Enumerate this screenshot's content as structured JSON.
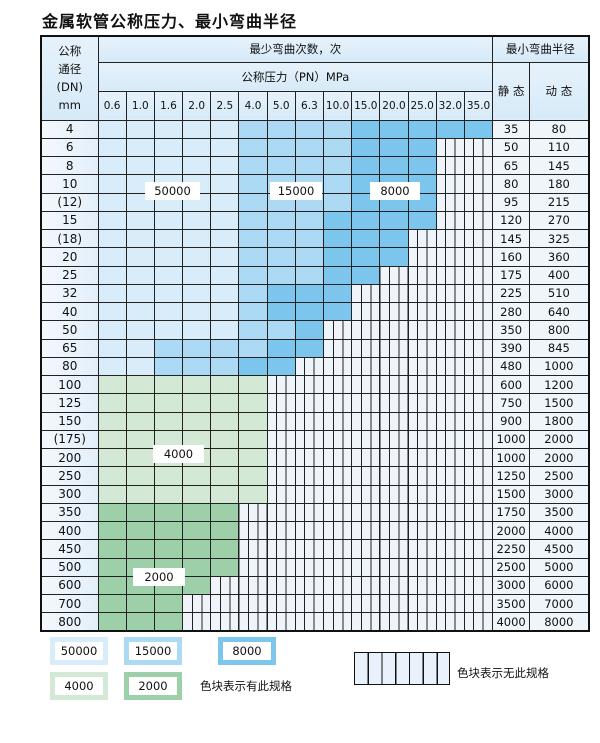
{
  "title": "金属软管公称压力、最小弯曲半径",
  "header": {
    "dn_label": [
      "公称",
      "通径",
      "(DN)",
      "mm"
    ],
    "cycles_label": "最少弯曲次数，次",
    "pressure_label": "公称压力（PN）MPa",
    "radius_label": "最小弯曲半径",
    "static_label": "静 态",
    "dynamic_label": "动 态",
    "pressures": [
      "0.6",
      "1.0",
      "1.6",
      "2.0",
      "2.5",
      "4.0",
      "5.0",
      "6.3",
      "10.0",
      "15.0",
      "20.0",
      "25.0",
      "32.0",
      "35.0"
    ]
  },
  "fill_legend": {
    "L": "50000",
    "M": "15000",
    "D": "8000",
    "G": "4000",
    "H": "2000",
    "E": "none"
  },
  "colors": {
    "L": "#d9ecf9",
    "M": "#acd9f3",
    "D": "#7cc6ee",
    "G": "#d3e8d5",
    "H": "#9dd0a9"
  },
  "rows": [
    {
      "dn": "4",
      "cells": "LLLLLMMMMDDDDD",
      "static": "35",
      "dynamic": "80"
    },
    {
      "dn": "6",
      "cells": "LLLLLMMMMDDDEE",
      "static": "50",
      "dynamic": "110"
    },
    {
      "dn": "8",
      "cells": "LLLLLMMMMDDDEE",
      "static": "65",
      "dynamic": "145"
    },
    {
      "dn": "10",
      "cells": "LLLLLMMMMDDDEE",
      "static": "80",
      "dynamic": "180"
    },
    {
      "dn": "(12)",
      "cells": "LLLLLMMMMDDDEE",
      "static": "95",
      "dynamic": "215"
    },
    {
      "dn": "15",
      "cells": "LLLLLMMMDDDDEE",
      "static": "120",
      "dynamic": "270"
    },
    {
      "dn": "(18)",
      "cells": "LLLLLMMMDDDEEE",
      "static": "145",
      "dynamic": "325"
    },
    {
      "dn": "20",
      "cells": "LLLLLMMMDDDEEE",
      "static": "160",
      "dynamic": "360"
    },
    {
      "dn": "25",
      "cells": "LLLLLMMMDDEEEE",
      "static": "175",
      "dynamic": "400"
    },
    {
      "dn": "32",
      "cells": "LLLLLMDDDEEEEE",
      "static": "225",
      "dynamic": "510"
    },
    {
      "dn": "40",
      "cells": "LLLLLMDDDEEEEE",
      "static": "280",
      "dynamic": "640"
    },
    {
      "dn": "50",
      "cells": "LLLLLMMDEEEEEE",
      "static": "350",
      "dynamic": "800"
    },
    {
      "dn": "65",
      "cells": "LLMMMMDDEEEEEE",
      "static": "390",
      "dynamic": "845"
    },
    {
      "dn": "80",
      "cells": "LLMMMDDEEEEEEE",
      "static": "480",
      "dynamic": "1000"
    },
    {
      "dn": "100",
      "cells": "GGGGGGEEEEEEEE",
      "static": "600",
      "dynamic": "1200"
    },
    {
      "dn": "125",
      "cells": "GGGGGGEEEEEEEE",
      "static": "750",
      "dynamic": "1500"
    },
    {
      "dn": "150",
      "cells": "GGGGGGEEEEEEEE",
      "static": "900",
      "dynamic": "1800"
    },
    {
      "dn": "(175)",
      "cells": "GGGGGGEEEEEEEE",
      "static": "1000",
      "dynamic": "2000"
    },
    {
      "dn": "200",
      "cells": "GGGGGGEEEEEEEE",
      "static": "1000",
      "dynamic": "2000"
    },
    {
      "dn": "250",
      "cells": "GGGGGGEEEEEEEE",
      "static": "1250",
      "dynamic": "2500"
    },
    {
      "dn": "300",
      "cells": "GGGGGGEEEEEEEE",
      "static": "1500",
      "dynamic": "3000"
    },
    {
      "dn": "350",
      "cells": "HHHHHEEEEEEEEE",
      "static": "1750",
      "dynamic": "3500"
    },
    {
      "dn": "400",
      "cells": "HHHHHEEEEEEEEE",
      "static": "2000",
      "dynamic": "4000"
    },
    {
      "dn": "450",
      "cells": "HHHHHEEEEEEEEE",
      "static": "2250",
      "dynamic": "4500"
    },
    {
      "dn": "500",
      "cells": "HHHHHEEEEEEEEE",
      "static": "2500",
      "dynamic": "5000"
    },
    {
      "dn": "600",
      "cells": "HHHHEEEEEEEEEE",
      "static": "3000",
      "dynamic": "6000"
    },
    {
      "dn": "700",
      "cells": "HHHEEEEEEEEEEE",
      "static": "3500",
      "dynamic": "7000"
    },
    {
      "dn": "800",
      "cells": "HHHEEEEEEEEEEE",
      "static": "4000",
      "dynamic": "8000"
    }
  ],
  "region_labels": [
    "50000",
    "15000",
    "8000",
    "4000",
    "2000"
  ],
  "legend": {
    "items": [
      "50000",
      "15000",
      "8000",
      "4000",
      "2000"
    ],
    "has_spec_text": "色块表示有此规格",
    "no_spec_text": "色块表示无此规格"
  }
}
